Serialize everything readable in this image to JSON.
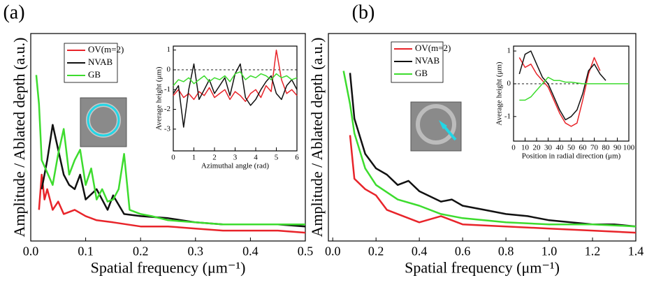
{
  "chart_data": [
    {
      "type": "line",
      "panel_label": "(a)",
      "x_label": "Spatial frequency (μm⁻¹)",
      "y_label": "Amplitude / Ablated depth (a.u.)",
      "xlim": [
        0,
        0.5
      ],
      "xticks": [
        {
          "value": 0,
          "label": "0.0"
        },
        0.1,
        0.2,
        0.3,
        0.4,
        0.5
      ],
      "ylim": [
        0,
        10
      ],
      "series": [
        {
          "name": "OV(m=2)",
          "color": "#e8242a",
          "x": [
            0.015,
            0.02,
            0.025,
            0.03,
            0.04,
            0.05,
            0.06,
            0.08,
            0.1,
            0.12,
            0.15,
            0.2,
            0.25,
            0.3,
            0.35,
            0.4,
            0.45,
            0.5
          ],
          "values": [
            1.5,
            3.2,
            2.0,
            2.5,
            1.5,
            1.9,
            1.3,
            1.5,
            1.2,
            1.0,
            0.9,
            0.7,
            0.7,
            0.6,
            0.5,
            0.5,
            0.5,
            0.4
          ]
        },
        {
          "name": "NVAB",
          "color": "#111111",
          "x": [
            0.02,
            0.03,
            0.04,
            0.05,
            0.06,
            0.07,
            0.08,
            0.09,
            0.1,
            0.12,
            0.14,
            0.15,
            0.17,
            0.2,
            0.25,
            0.3,
            0.35,
            0.4,
            0.45,
            0.5
          ],
          "values": [
            2.5,
            3.9,
            5.6,
            4.4,
            3.2,
            2.7,
            2.5,
            3.2,
            2.0,
            2.5,
            1.5,
            2.2,
            1.3,
            1.2,
            1.1,
            0.9,
            0.8,
            0.8,
            0.8,
            0.7
          ]
        },
        {
          "name": "GB",
          "color": "#3ddc2e",
          "x": [
            0.01,
            0.015,
            0.02,
            0.03,
            0.04,
            0.05,
            0.06,
            0.07,
            0.08,
            0.09,
            0.1,
            0.11,
            0.12,
            0.13,
            0.14,
            0.15,
            0.16,
            0.17,
            0.18,
            0.2,
            0.22,
            0.25,
            0.3,
            0.35,
            0.4,
            0.45,
            0.5
          ],
          "values": [
            8.0,
            6.6,
            3.9,
            3.3,
            2.7,
            4.2,
            5.4,
            3.2,
            3.9,
            4.4,
            2.7,
            3.5,
            2.0,
            2.5,
            1.9,
            2.0,
            2.5,
            4.2,
            1.5,
            1.3,
            1.2,
            1.0,
            0.9,
            0.8,
            0.8,
            0.8,
            0.8
          ]
        }
      ]
    },
    {
      "type": "line",
      "x_label": "Azimuthal angle (rad)",
      "y_label": "Average height (μm)",
      "zero_line": true,
      "xlim": [
        0,
        6
      ],
      "xticks": [
        0,
        1,
        2,
        3,
        4,
        5,
        6
      ],
      "ylim": [
        -4.1,
        1.2
      ],
      "yticks": [
        1,
        0,
        -1,
        -2,
        -3
      ],
      "series": [
        {
          "name": "OV(m=2)",
          "color": "#e8242a",
          "x": [
            0,
            0.25,
            0.5,
            0.75,
            1,
            1.25,
            1.5,
            1.75,
            2,
            2.25,
            2.5,
            2.75,
            3,
            3.25,
            3.5,
            3.75,
            4,
            4.25,
            4.5,
            4.75,
            5,
            5.25,
            5.5,
            5.75,
            6
          ],
          "values": [
            -1.3,
            -1.0,
            -1.4,
            -1.2,
            -1.5,
            -1.1,
            -1.3,
            -0.9,
            -1.4,
            -1.2,
            -1.0,
            -1.5,
            -1.1,
            -1.3,
            -1.6,
            -1.2,
            -1.0,
            -1.4,
            -0.8,
            -1.1,
            1.0,
            -0.5,
            -1.2,
            -1.0,
            -1.3
          ]
        },
        {
          "name": "NVAB",
          "color": "#111111",
          "x": [
            0,
            0.25,
            0.5,
            0.75,
            1,
            1.25,
            1.5,
            1.75,
            2,
            2.25,
            2.5,
            2.75,
            3,
            3.25,
            3.5,
            3.75,
            4,
            4.25,
            4.5,
            4.75,
            5,
            5.25,
            5.5,
            5.75,
            6
          ],
          "values": [
            -1.2,
            -0.8,
            -2.9,
            -1.0,
            0.3,
            -1.5,
            -1.0,
            -0.5,
            -1.2,
            -0.8,
            -0.4,
            -1.3,
            -0.2,
            0.3,
            -1.4,
            -1.8,
            -1.5,
            -1.0,
            -0.6,
            -0.3,
            -1.2,
            -1.5,
            -0.8,
            -0.5,
            -1.0
          ]
        },
        {
          "name": "GB",
          "color": "#3ddc2e",
          "x": [
            0,
            0.25,
            0.5,
            0.75,
            1,
            1.25,
            1.5,
            1.75,
            2,
            2.25,
            2.5,
            2.75,
            3,
            3.25,
            3.5,
            3.75,
            4,
            4.25,
            4.5,
            4.75,
            5,
            5.25,
            5.5,
            5.75,
            6
          ],
          "values": [
            -0.8,
            -0.5,
            -0.6,
            -0.4,
            -0.7,
            -0.5,
            -0.3,
            -0.6,
            -0.4,
            -0.5,
            -0.3,
            -0.6,
            -0.2,
            -0.1,
            -0.5,
            -0.3,
            -0.4,
            -0.2,
            -0.3,
            -0.5,
            -0.2,
            -0.4,
            -0.3,
            -0.5,
            -0.4
          ]
        }
      ]
    },
    {
      "type": "line",
      "panel_label": "(b)",
      "x_label": "Spatial frequency (μm⁻¹)",
      "y_label": "Amplitude / Ablated depth (a.u.)",
      "xlim": [
        -0.02,
        1.4
      ],
      "xticks": [
        {
          "value": 0,
          "label": "0.0"
        },
        0.2,
        0.4,
        0.6,
        0.8,
        {
          "value": 1,
          "label": "1.0"
        },
        1.2,
        1.4
      ],
      "ylim": [
        0,
        10
      ],
      "series": [
        {
          "name": "OV(m=2)",
          "color": "#e8242a",
          "x": [
            0.08,
            0.1,
            0.15,
            0.2,
            0.25,
            0.3,
            0.4,
            0.5,
            0.6,
            0.8,
            1.0,
            1.2,
            1.4
          ],
          "values": [
            5.1,
            3.0,
            2.5,
            2.2,
            1.5,
            1.3,
            0.9,
            1.2,
            0.8,
            0.7,
            0.6,
            0.5,
            0.4
          ]
        },
        {
          "name": "NVAB",
          "color": "#111111",
          "x": [
            0.08,
            0.1,
            0.15,
            0.2,
            0.25,
            0.3,
            0.35,
            0.4,
            0.5,
            0.55,
            0.6,
            0.7,
            0.8,
            0.9,
            1.0,
            1.1,
            1.2,
            1.3,
            1.4
          ],
          "values": [
            8.1,
            5.9,
            4.2,
            3.5,
            3.2,
            2.7,
            2.9,
            2.4,
            1.9,
            2.0,
            1.7,
            1.5,
            1.3,
            1.2,
            1.0,
            0.9,
            0.8,
            0.8,
            0.7
          ]
        },
        {
          "name": "GB",
          "color": "#3ddc2e",
          "x": [
            0.05,
            0.08,
            0.1,
            0.15,
            0.2,
            0.3,
            0.4,
            0.5,
            0.6,
            0.8,
            1.0,
            1.2,
            1.4
          ],
          "values": [
            8.2,
            6.6,
            5.2,
            3.5,
            2.7,
            2.0,
            1.7,
            1.3,
            1.1,
            0.9,
            0.8,
            0.8,
            0.7
          ]
        }
      ]
    },
    {
      "type": "line",
      "x_label": "Position in radial direction (μm)",
      "y_label": "Average height (μm)",
      "zero_line": true,
      "xlim": [
        0,
        100
      ],
      "xticks": [
        0,
        10,
        20,
        30,
        40,
        50,
        60,
        70,
        80,
        90,
        100
      ],
      "ylim": [
        -1.75,
        1.15
      ],
      "yticks": [
        1,
        0,
        -1
      ],
      "series": [
        {
          "name": "OV(m=2)",
          "color": "#e8242a",
          "x": [
            5,
            10,
            15,
            20,
            25,
            30,
            35,
            40,
            45,
            50,
            55,
            60,
            65,
            70,
            75
          ],
          "values": [
            0.8,
            0.5,
            0.6,
            0.3,
            0.1,
            -0.1,
            -0.5,
            -0.9,
            -1.2,
            -1.3,
            -1.2,
            -0.5,
            0.3,
            0.8,
            0.4
          ]
        },
        {
          "name": "NVAB",
          "color": "#111111",
          "x": [
            5,
            10,
            15,
            20,
            25,
            30,
            35,
            40,
            45,
            50,
            55,
            60,
            65,
            70,
            75,
            80
          ],
          "values": [
            0.3,
            0.9,
            1.0,
            0.6,
            0.2,
            0.0,
            -0.4,
            -0.8,
            -1.1,
            -1.0,
            -0.8,
            -0.3,
            0.4,
            0.6,
            0.3,
            0.1
          ]
        },
        {
          "name": "GB",
          "color": "#3ddc2e",
          "x": [
            5,
            10,
            15,
            20,
            25,
            30,
            35,
            40,
            45,
            50,
            60,
            70,
            80,
            90,
            100
          ],
          "values": [
            -0.5,
            -0.5,
            -0.4,
            -0.2,
            0.0,
            0.2,
            0.1,
            0.1,
            0.05,
            0.05,
            0.0,
            0.0,
            0.0,
            0.0,
            0.0
          ]
        }
      ]
    }
  ]
}
